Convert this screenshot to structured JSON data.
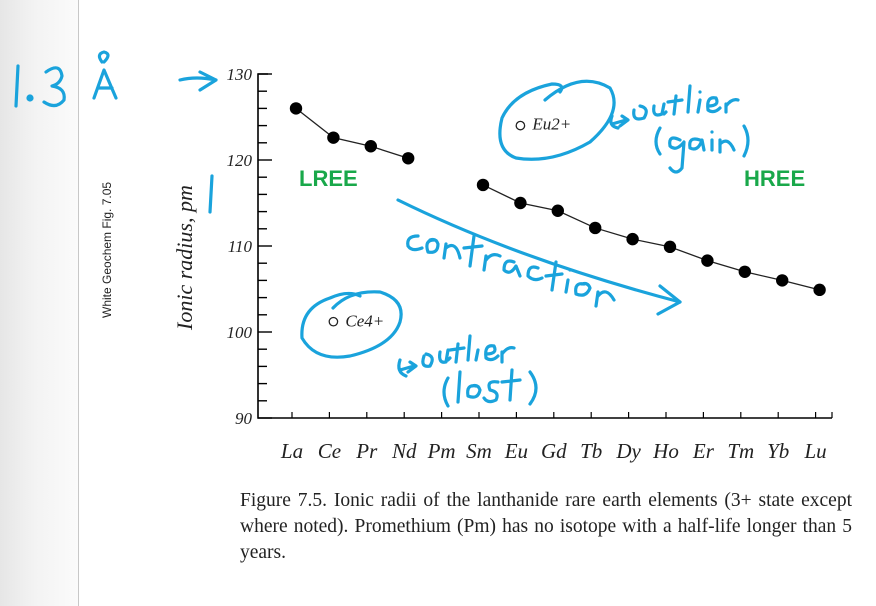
{
  "chart_data": {
    "type": "line",
    "title": "",
    "xlabel": "",
    "ylabel": "Ionic radius, pm",
    "ylim": [
      90,
      130
    ],
    "yticks": [
      90,
      100,
      110,
      120,
      130
    ],
    "grid": false,
    "categories": [
      "La",
      "Ce",
      "Pr",
      "Nd",
      "Pm",
      "Sm",
      "Eu",
      "Gd",
      "Tb",
      "Dy",
      "Ho",
      "Er",
      "Tm",
      "Yb",
      "Lu"
    ],
    "series": [
      {
        "name": "LREE (3+)",
        "marker": "filled-circle",
        "connected": true,
        "points": [
          [
            "La",
            126.0
          ],
          [
            "Ce",
            122.6
          ],
          [
            "Pr",
            121.6
          ],
          [
            "Nd",
            120.2
          ]
        ]
      },
      {
        "name": "HREE (3+)",
        "marker": "filled-circle",
        "connected": true,
        "points": [
          [
            "Sm",
            117.1
          ],
          [
            "Eu",
            115.0
          ],
          [
            "Gd",
            114.1
          ],
          [
            "Tb",
            112.1
          ],
          [
            "Dy",
            110.8
          ],
          [
            "Ho",
            109.9
          ],
          [
            "Er",
            108.3
          ],
          [
            "Tm",
            107.0
          ],
          [
            "Yb",
            106.0
          ],
          [
            "Lu",
            104.9
          ]
        ]
      },
      {
        "name": "Eu2+",
        "marker": "open-circle",
        "connected": false,
        "points": [
          [
            "Eu",
            124.0
          ]
        ]
      },
      {
        "name": "Ce4+",
        "marker": "open-circle",
        "connected": false,
        "points": [
          [
            "Ce",
            101.2
          ]
        ]
      }
    ],
    "annotations": {
      "eu2": "Eu2+",
      "ce4": "Ce4+",
      "lree": "LREE",
      "hree": "HREE"
    },
    "handwritten": {
      "angstrom": "1.3 Å",
      "contraction": "contraction",
      "outlier_gain": "outlier (gain)",
      "outlier_lost": "outlier (lost)"
    },
    "credit": "White Geochem Fig. 7.05",
    "caption": "Figure 7.5.   Ionic radii of the lanthanide rare earth elements (3+ state except where noted).  Promethium (Pm) has no isotope with a half-life longer than 5 years."
  },
  "colors": {
    "ink": "#000000",
    "green": "#19a84a",
    "annotation": "#1aa3dc"
  }
}
